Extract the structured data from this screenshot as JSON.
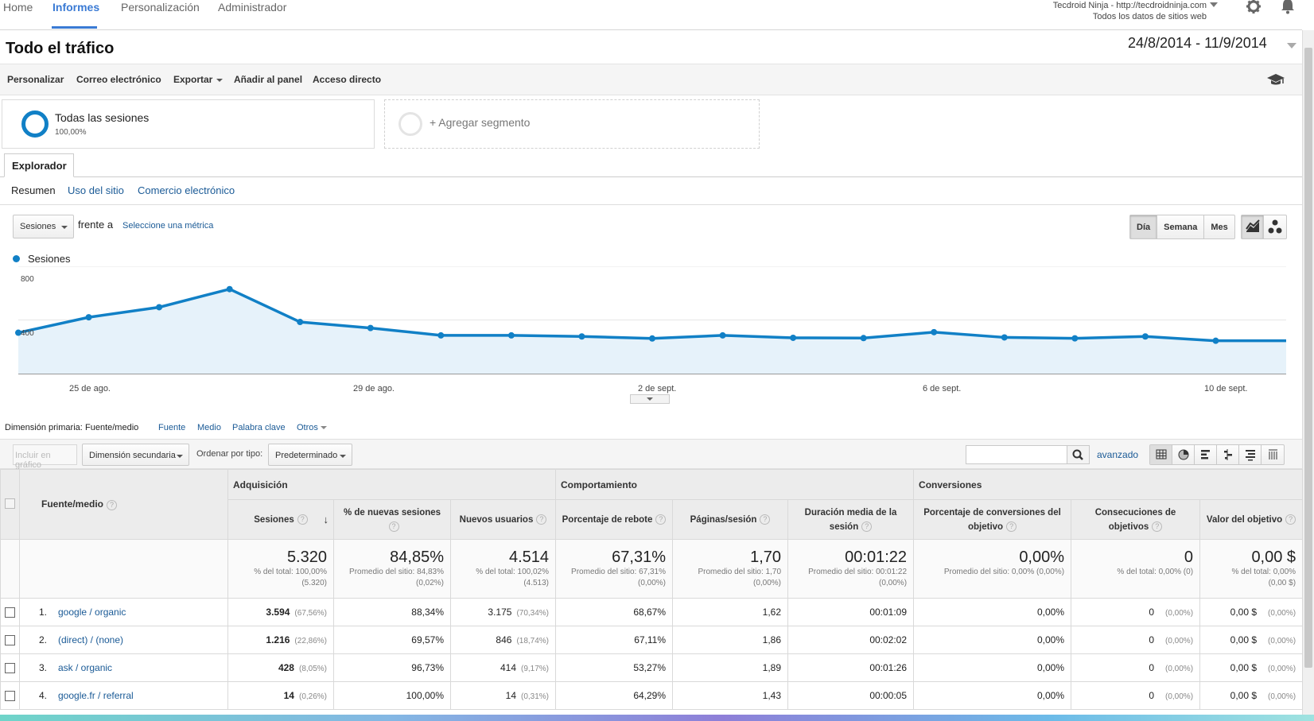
{
  "topnav": {
    "home": "Home",
    "reports": "Informes",
    "customization": "Personalización",
    "admin": "Administrador",
    "account_name": "Tecdroid Ninja - http://tecdroidninja.com",
    "account_view": "Todos los datos de sitios web"
  },
  "header": {
    "title": "Todo el tráfico",
    "date_range": "24/8/2014 - 11/9/2014"
  },
  "toolbar": {
    "customize": "Personalizar",
    "email": "Correo electrónico",
    "export": "Exportar",
    "add_dashboard": "Añadir al panel",
    "shortcut": "Acceso directo"
  },
  "segments": {
    "all_sessions": "Todas las sesiones",
    "all_sessions_pct": "100,00%",
    "add_segment": "+ Agregar segmento"
  },
  "explorer": {
    "tab": "Explorador",
    "subtabs": [
      "Resumen",
      "Uso del sitio",
      "Comercio electrónico"
    ]
  },
  "chart_controls": {
    "metric": "Sesiones",
    "versus": "frente a",
    "select_metric": "Seleccione una métrica",
    "day": "Día",
    "week": "Semana",
    "month": "Mes"
  },
  "chart_data": {
    "type": "area",
    "series": [
      {
        "name": "Sesiones",
        "values": [
          305,
          420,
          495,
          630,
          385,
          340,
          285,
          285,
          277,
          262,
          285,
          267,
          265,
          309,
          270,
          263,
          277,
          245,
          245
        ]
      }
    ],
    "x": [
      "24 de ago.",
      "25 de ago.",
      "26 de ago.",
      "27 de ago.",
      "28 de ago.",
      "29 de ago.",
      "30 de ago.",
      "31 de ago.",
      "1 de sept.",
      "2 de sept.",
      "3 de sept.",
      "4 de sept.",
      "5 de sept.",
      "6 de sept.",
      "7 de sept.",
      "8 de sept.",
      "9 de sept.",
      "10 de sept.",
      "11 de sept."
    ],
    "xtick_labels": [
      "25 de ago.",
      "29 de ago.",
      "2 de sept.",
      "6 de sept.",
      "10 de sept."
    ],
    "ytick_labels": [
      "800",
      "400"
    ],
    "ylim": [
      0,
      800
    ],
    "color": "#1180c6"
  },
  "primary_dimension": {
    "label": "Dimensión primaria:",
    "selected": "Fuente/medio",
    "options": [
      "Fuente",
      "Medio",
      "Palabra clave",
      "Otros"
    ]
  },
  "table_controls": {
    "plot_rows": "Incluir en gráfico",
    "secondary_dimension": "Dimensión secundaria",
    "sort_type_label": "Ordenar por tipo:",
    "sort_type": "Predeterminado",
    "search_value": "",
    "advanced": "avanzado"
  },
  "table": {
    "groups": {
      "acquisition": "Adquisición",
      "behavior": "Comportamiento",
      "conversions": "Conversiones"
    },
    "columns": {
      "source": "Fuente/medio",
      "sessions": "Sesiones",
      "new_sessions": "% de nuevas sesiones",
      "new_users": "Nuevos usuarios",
      "bounce": "Porcentaje de rebote",
      "pages": "Páginas/sesión",
      "duration": "Duración media de la sesión",
      "conv_rate": "Porcentaje de conversiones del objetivo",
      "completions": "Consecuciones de objetivos",
      "goal_value": "Valor del objetivo"
    },
    "totals": {
      "sessions": "5.320",
      "sessions_sub1": "% del total: 100,00%",
      "sessions_sub2": "(5.320)",
      "new_sessions": "84,85%",
      "new_sessions_sub1": "Promedio del sitio: 84,83%",
      "new_sessions_sub2": "(0,02%)",
      "new_users": "4.514",
      "new_users_sub1": "% del total: 100,02%",
      "new_users_sub2": "(4.513)",
      "bounce": "67,31%",
      "bounce_sub1": "Promedio del sitio: 67,31%",
      "bounce_sub2": "(0,00%)",
      "pages": "1,70",
      "pages_sub1": "Promedio del sitio: 1,70",
      "pages_sub2": "(0,00%)",
      "duration": "00:01:22",
      "duration_sub1": "Promedio del sitio: 00:01:22",
      "duration_sub2": "(0,00%)",
      "conv_rate": "0,00%",
      "conv_rate_sub1": "Promedio del sitio: 0,00% (0,00%)",
      "completions": "0",
      "completions_sub1": "% del total: 0,00% (0)",
      "goal_value": "0,00 $",
      "goal_value_sub1": "% del total: 0,00%",
      "goal_value_sub2": "(0,00 $)"
    },
    "rows": [
      {
        "idx": "1.",
        "source": "google / organic",
        "sessions": "3.594",
        "sessions_pct": "(67,56%)",
        "new_sessions": "88,34%",
        "new_users": "3.175",
        "new_users_pct": "(70,34%)",
        "bounce": "68,67%",
        "pages": "1,62",
        "duration": "00:01:09",
        "conv_rate": "0,00%",
        "completions": "0",
        "completions_pct": "(0,00%)",
        "goal_value": "0,00 $",
        "goal_value_pct": "(0,00%)"
      },
      {
        "idx": "2.",
        "source": "(direct) / (none)",
        "sessions": "1.216",
        "sessions_pct": "(22,86%)",
        "new_sessions": "69,57%",
        "new_users": "846",
        "new_users_pct": "(18,74%)",
        "bounce": "67,11%",
        "pages": "1,86",
        "duration": "00:02:02",
        "conv_rate": "0,00%",
        "completions": "0",
        "completions_pct": "(0,00%)",
        "goal_value": "0,00 $",
        "goal_value_pct": "(0,00%)"
      },
      {
        "idx": "3.",
        "source": "ask / organic",
        "sessions": "428",
        "sessions_pct": "(8,05%)",
        "new_sessions": "96,73%",
        "new_users": "414",
        "new_users_pct": "(9,17%)",
        "bounce": "53,27%",
        "pages": "1,89",
        "duration": "00:01:26",
        "conv_rate": "0,00%",
        "completions": "0",
        "completions_pct": "(0,00%)",
        "goal_value": "0,00 $",
        "goal_value_pct": "(0,00%)"
      },
      {
        "idx": "4.",
        "source": "google.fr / referral",
        "sessions": "14",
        "sessions_pct": "(0,26%)",
        "new_sessions": "100,00%",
        "new_users": "14",
        "new_users_pct": "(0,31%)",
        "bounce": "64,29%",
        "pages": "1,43",
        "duration": "00:00:05",
        "conv_rate": "0,00%",
        "completions": "0",
        "completions_pct": "(0,00%)",
        "goal_value": "0,00 $",
        "goal_value_pct": "(0,00%)"
      }
    ]
  }
}
